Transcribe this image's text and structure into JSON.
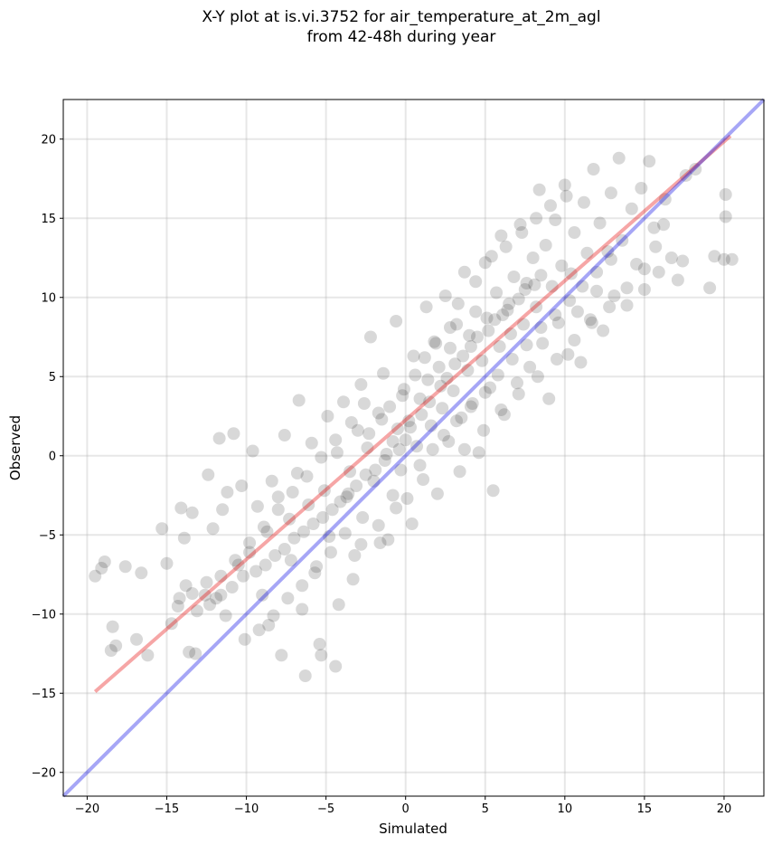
{
  "chart_data": {
    "type": "scatter",
    "title": "X-Y plot at is.vi.3752 for air_temperature_at_2m_agl",
    "subtitle": "from 42-48h during year",
    "xlabel": "Simulated",
    "ylabel": "Observed",
    "xlim": [
      -21.5,
      22.5
    ],
    "ylim": [
      -21.5,
      22.5
    ],
    "x_ticks": [
      -20,
      -15,
      -10,
      -5,
      0,
      5,
      10,
      15,
      20
    ],
    "y_ticks": [
      -20,
      -15,
      -10,
      -5,
      0,
      5,
      10,
      15,
      20
    ],
    "x_tick_labels": [
      "−20",
      "−15",
      "−10",
      "−5",
      "0",
      "5",
      "10",
      "15",
      "20"
    ],
    "y_tick_labels": [
      "−20",
      "−15",
      "−10",
      "−5",
      "0",
      "5",
      "10",
      "15",
      "20"
    ],
    "grid": true,
    "point_color": "#000000",
    "point_alpha": 0.07,
    "series": [
      {
        "type": "scatter",
        "points_note": "dense cloud of several thousand semi-transparent points; representative sample",
        "points": [
          [
            -19.5,
            -7.6
          ],
          [
            -19.1,
            -7.1
          ],
          [
            -18.9,
            -6.7
          ],
          [
            -18.4,
            -10.8
          ],
          [
            -18.5,
            -12.3
          ],
          [
            -18.2,
            -12.0
          ],
          [
            -17.6,
            -7.0
          ],
          [
            -16.6,
            -7.4
          ],
          [
            -16.9,
            -11.6
          ],
          [
            -16.2,
            -12.6
          ],
          [
            -15.3,
            -4.6
          ],
          [
            -15.0,
            -6.8
          ],
          [
            -14.7,
            -10.6
          ],
          [
            -14.1,
            -3.3
          ],
          [
            -14.2,
            -9.0
          ],
          [
            -13.8,
            -8.2
          ],
          [
            -13.6,
            -12.4
          ],
          [
            -13.2,
            -12.5
          ],
          [
            -13.9,
            -5.2
          ],
          [
            -13.4,
            -3.6
          ],
          [
            -12.6,
            -8.8
          ],
          [
            -12.1,
            -4.6
          ],
          [
            -12.4,
            -1.2
          ],
          [
            -11.7,
            1.1
          ],
          [
            -11.9,
            -9.0
          ],
          [
            -11.5,
            -3.4
          ],
          [
            -11.2,
            -2.3
          ],
          [
            -11.3,
            -10.1
          ],
          [
            -10.8,
            1.4
          ],
          [
            -10.5,
            -6.9
          ],
          [
            -10.3,
            -1.9
          ],
          [
            -10.1,
            -11.6
          ],
          [
            -9.6,
            0.3
          ],
          [
            -9.8,
            -6.1
          ],
          [
            -9.3,
            -3.2
          ],
          [
            -9.0,
            -8.8
          ],
          [
            -8.7,
            -4.8
          ],
          [
            -8.4,
            -1.6
          ],
          [
            -8.6,
            -10.7
          ],
          [
            -8.0,
            -2.6
          ],
          [
            -7.8,
            -12.6
          ],
          [
            -7.6,
            1.3
          ],
          [
            -7.3,
            -4.0
          ],
          [
            -7.2,
            -6.6
          ],
          [
            -6.8,
            -1.1
          ],
          [
            -6.7,
            3.5
          ],
          [
            -6.5,
            -9.7
          ],
          [
            -6.3,
            -13.9
          ],
          [
            -6.1,
            -3.1
          ],
          [
            -5.9,
            0.8
          ],
          [
            -5.7,
            -7.4
          ],
          [
            -5.4,
            -11.9
          ],
          [
            -5.3,
            -12.6
          ],
          [
            -5.1,
            -2.2
          ],
          [
            -4.9,
            2.5
          ],
          [
            -4.8,
            -5.1
          ],
          [
            -4.4,
            -13.3
          ],
          [
            -4.2,
            -9.4
          ],
          [
            -4.3,
            0.2
          ],
          [
            -3.9,
            3.4
          ],
          [
            -3.7,
            -2.6
          ],
          [
            -3.5,
            -1.0
          ],
          [
            -3.2,
            -6.3
          ],
          [
            -3.0,
            1.6
          ],
          [
            -2.8,
            4.5
          ],
          [
            -2.7,
            -3.9
          ],
          [
            -2.4,
            0.5
          ],
          [
            -2.2,
            7.5
          ],
          [
            -2.0,
            -1.6
          ],
          [
            -1.7,
            2.7
          ],
          [
            -1.6,
            -5.5
          ],
          [
            -1.4,
            5.2
          ],
          [
            -1.2,
            0.1
          ],
          [
            -1.0,
            3.1
          ],
          [
            -0.8,
            -2.5
          ],
          [
            -0.6,
            8.5
          ],
          [
            -0.5,
            1.7
          ],
          [
            -0.3,
            -0.9
          ],
          [
            -0.1,
            4.2
          ],
          [
            0.2,
            2.2
          ],
          [
            0.4,
            -4.3
          ],
          [
            0.5,
            6.3
          ],
          [
            0.7,
            0.6
          ],
          [
            0.9,
            3.6
          ],
          [
            1.1,
            -1.5
          ],
          [
            1.3,
            9.4
          ],
          [
            1.4,
            4.8
          ],
          [
            1.6,
            1.9
          ],
          [
            1.8,
            7.2
          ],
          [
            2.0,
            -2.4
          ],
          [
            2.1,
            5.6
          ],
          [
            2.3,
            3.0
          ],
          [
            2.5,
            10.1
          ],
          [
            2.7,
            0.9
          ],
          [
            2.8,
            6.8
          ],
          [
            3.0,
            4.1
          ],
          [
            3.2,
            8.3
          ],
          [
            3.4,
            -1.0
          ],
          [
            3.5,
            2.4
          ],
          [
            3.7,
            11.6
          ],
          [
            3.9,
            5.4
          ],
          [
            4.0,
            7.6
          ],
          [
            4.2,
            3.3
          ],
          [
            4.4,
            9.1
          ],
          [
            4.6,
            0.2
          ],
          [
            4.8,
            6.0
          ],
          [
            5.0,
            12.2
          ],
          [
            5.1,
            8.7
          ],
          [
            5.3,
            4.3
          ],
          [
            5.5,
            -2.2
          ],
          [
            5.7,
            10.3
          ],
          [
            5.9,
            6.9
          ],
          [
            6.0,
            13.9
          ],
          [
            6.2,
            2.6
          ],
          [
            6.4,
            9.2
          ],
          [
            6.6,
            7.7
          ],
          [
            6.8,
            11.3
          ],
          [
            7.0,
            4.6
          ],
          [
            7.2,
            14.6
          ],
          [
            7.4,
            8.3
          ],
          [
            7.6,
            10.9
          ],
          [
            7.8,
            5.6
          ],
          [
            8.0,
            12.5
          ],
          [
            8.2,
            9.4
          ],
          [
            8.4,
            16.8
          ],
          [
            8.6,
            7.1
          ],
          [
            8.8,
            13.3
          ],
          [
            9.0,
            3.6
          ],
          [
            9.2,
            10.7
          ],
          [
            9.4,
            14.9
          ],
          [
            9.6,
            8.4
          ],
          [
            9.8,
            12.0
          ],
          [
            10.0,
            17.1
          ],
          [
            10.2,
            6.4
          ],
          [
            10.4,
            11.5
          ],
          [
            10.6,
            14.1
          ],
          [
            10.8,
            9.1
          ],
          [
            11.0,
            5.9
          ],
          [
            11.2,
            16.0
          ],
          [
            11.4,
            12.8
          ],
          [
            11.6,
            8.6
          ],
          [
            11.8,
            18.1
          ],
          [
            12.0,
            10.4
          ],
          [
            12.2,
            14.7
          ],
          [
            12.4,
            7.9
          ],
          [
            12.7,
            12.9
          ],
          [
            12.9,
            16.6
          ],
          [
            13.1,
            10.1
          ],
          [
            13.4,
            18.8
          ],
          [
            13.6,
            13.6
          ],
          [
            13.9,
            9.5
          ],
          [
            14.2,
            15.6
          ],
          [
            14.5,
            12.1
          ],
          [
            14.8,
            16.9
          ],
          [
            15.0,
            10.5
          ],
          [
            15.3,
            18.6
          ],
          [
            15.6,
            14.4
          ],
          [
            15.9,
            11.6
          ],
          [
            16.3,
            16.2
          ],
          [
            16.7,
            12.5
          ],
          [
            17.1,
            11.1
          ],
          [
            17.4,
            12.3
          ],
          [
            17.6,
            17.7
          ],
          [
            18.2,
            18.1
          ],
          [
            19.1,
            10.6
          ],
          [
            19.4,
            12.6
          ],
          [
            20.0,
            12.4
          ],
          [
            20.1,
            16.5
          ],
          [
            20.1,
            15.1
          ],
          [
            20.5,
            12.4
          ],
          [
            0.0,
            1.0
          ],
          [
            0.3,
            1.8
          ],
          [
            -0.4,
            0.4
          ],
          [
            1.0,
            2.6
          ],
          [
            1.5,
            3.4
          ],
          [
            2.2,
            4.4
          ],
          [
            2.6,
            4.9
          ],
          [
            3.1,
            5.8
          ],
          [
            3.6,
            6.3
          ],
          [
            4.1,
            6.9
          ],
          [
            4.5,
            7.5
          ],
          [
            5.2,
            7.9
          ],
          [
            5.6,
            8.6
          ],
          [
            6.1,
            8.9
          ],
          [
            6.5,
            9.6
          ],
          [
            7.1,
            9.9
          ],
          [
            7.5,
            10.5
          ],
          [
            8.1,
            10.8
          ],
          [
            8.5,
            11.4
          ],
          [
            -0.8,
            0.9
          ],
          [
            -1.3,
            -0.3
          ],
          [
            -1.9,
            -0.9
          ],
          [
            -2.5,
            -1.2
          ],
          [
            -3.1,
            -1.9
          ],
          [
            -3.6,
            -2.4
          ],
          [
            -4.1,
            -2.9
          ],
          [
            -4.6,
            -3.4
          ],
          [
            -5.2,
            -3.9
          ],
          [
            -5.8,
            -4.3
          ],
          [
            -6.4,
            -4.8
          ],
          [
            -7.0,
            -5.2
          ],
          [
            -7.6,
            -5.9
          ],
          [
            -8.2,
            -6.3
          ],
          [
            -8.8,
            -6.9
          ],
          [
            -9.4,
            -7.3
          ],
          [
            -10.2,
            -7.6
          ],
          [
            -10.9,
            -8.3
          ],
          [
            -11.6,
            -8.8
          ],
          [
            -12.3,
            -9.4
          ],
          [
            -13.1,
            -9.8
          ],
          [
            1.2,
            6.2
          ],
          [
            1.9,
            7.1
          ],
          [
            0.6,
            5.1
          ],
          [
            -0.2,
            3.8
          ],
          [
            2.8,
            8.1
          ],
          [
            3.3,
            9.6
          ],
          [
            -1.5,
            2.3
          ],
          [
            -2.3,
            1.4
          ],
          [
            0.9,
            -0.6
          ],
          [
            1.7,
            0.4
          ],
          [
            2.4,
            1.3
          ],
          [
            3.2,
            2.2
          ],
          [
            4.1,
            3.1
          ],
          [
            5.0,
            4.0
          ],
          [
            5.8,
            5.1
          ],
          [
            6.7,
            6.1
          ],
          [
            7.6,
            7.0
          ],
          [
            8.5,
            8.1
          ],
          [
            9.4,
            8.9
          ],
          [
            10.3,
            9.8
          ],
          [
            11.1,
            10.7
          ],
          [
            12.0,
            11.6
          ],
          [
            12.9,
            12.4
          ],
          [
            -3.8,
            -4.9
          ],
          [
            -4.7,
            -6.1
          ],
          [
            -5.6,
            -7.0
          ],
          [
            -6.5,
            -8.2
          ],
          [
            -7.4,
            -9.0
          ],
          [
            -8.3,
            -10.1
          ],
          [
            -9.2,
            -11.0
          ],
          [
            4.4,
            11.0
          ],
          [
            5.4,
            12.6
          ],
          [
            6.3,
            13.2
          ],
          [
            7.3,
            14.1
          ],
          [
            8.2,
            15.0
          ],
          [
            9.1,
            15.8
          ],
          [
            10.1,
            16.4
          ],
          [
            3.7,
            0.4
          ],
          [
            4.9,
            1.6
          ],
          [
            6.0,
            2.9
          ],
          [
            7.1,
            3.9
          ],
          [
            8.3,
            5.0
          ],
          [
            9.5,
            6.1
          ],
          [
            10.6,
            7.3
          ],
          [
            11.7,
            8.4
          ],
          [
            12.8,
            9.4
          ],
          [
            13.9,
            10.6
          ],
          [
            15.0,
            11.8
          ],
          [
            15.7,
            13.2
          ],
          [
            16.2,
            14.6
          ],
          [
            -0.6,
            -3.3
          ],
          [
            -1.7,
            -4.4
          ],
          [
            -2.8,
            -5.6
          ],
          [
            -3.3,
            -7.8
          ],
          [
            -1.1,
            -5.3
          ],
          [
            0.1,
            -2.7
          ],
          [
            -2.6,
            3.3
          ],
          [
            -3.4,
            2.1
          ],
          [
            -4.4,
            1.0
          ],
          [
            -5.3,
            -0.1
          ],
          [
            -6.2,
            -1.3
          ],
          [
            -7.1,
            -2.3
          ],
          [
            -8.0,
            -3.4
          ],
          [
            -8.9,
            -4.5
          ],
          [
            -9.8,
            -5.5
          ],
          [
            -10.7,
            -6.6
          ],
          [
            -11.6,
            -7.6
          ],
          [
            -12.5,
            -8.0
          ],
          [
            -13.4,
            -8.7
          ],
          [
            -14.3,
            -9.5
          ]
        ]
      },
      {
        "type": "line",
        "color": "#e60000",
        "alpha": 0.35,
        "x": [
          -19.5,
          20.4
        ],
        "y": [
          -14.9,
          20.2
        ]
      },
      {
        "type": "line",
        "color": "#0000e6",
        "alpha": 0.35,
        "x": [
          -21.5,
          22.5
        ],
        "y": [
          -21.5,
          22.5
        ]
      }
    ]
  }
}
